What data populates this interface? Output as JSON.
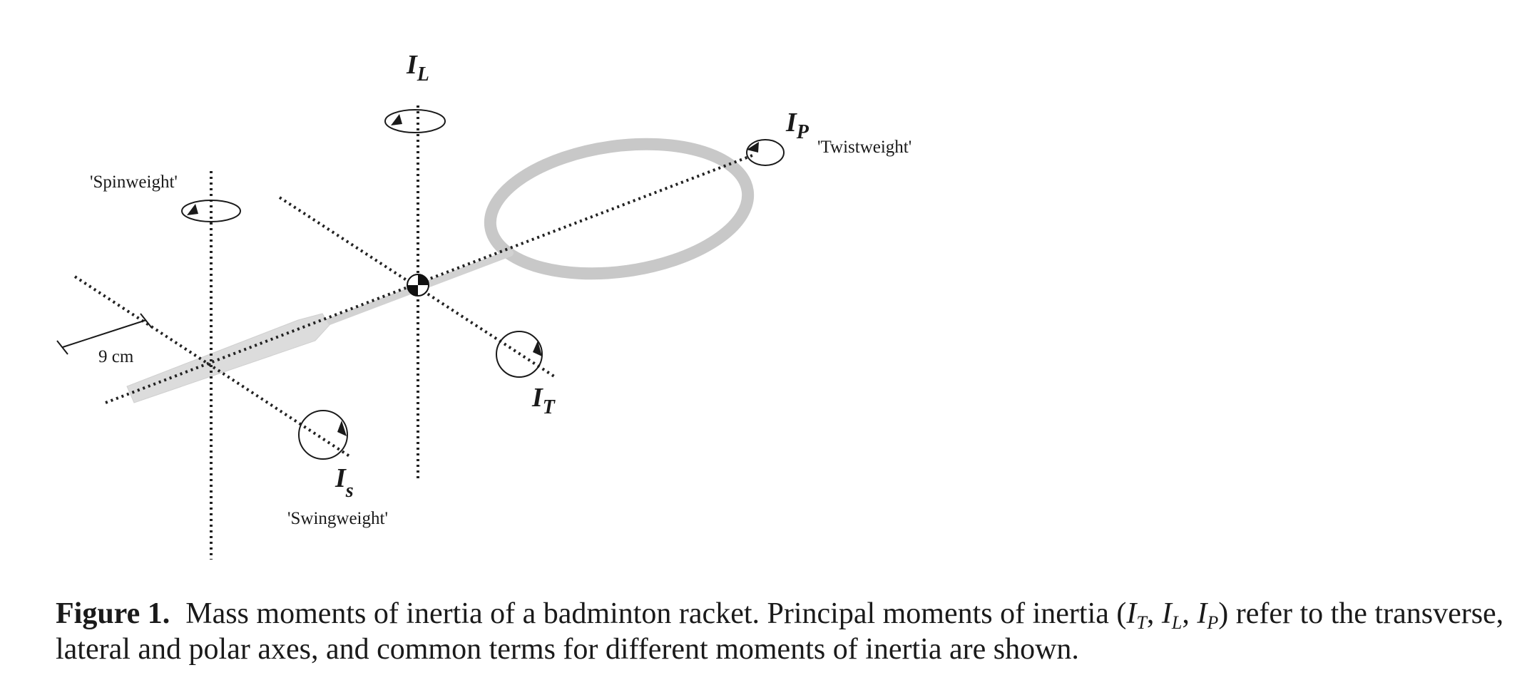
{
  "figure": {
    "axes": {
      "IL": {
        "main": "I",
        "sub": "L"
      },
      "IP": {
        "main": "I",
        "sub": "P"
      },
      "IT": {
        "main": "I",
        "sub": "T"
      },
      "Is": {
        "main": "I",
        "sub": "s"
      }
    },
    "terms": {
      "spinweight": "'Spinweight'",
      "twistweight": "'Twistweight'",
      "swingweight": "'Swingweight'"
    },
    "dimension": "9 cm"
  },
  "caption": {
    "label": "Figure 1.",
    "text_before": "Mass moments of inertia of a badminton racket. Principal moments of inertia (",
    "math": [
      {
        "main": "I",
        "sub": "T"
      },
      {
        "main": "I",
        "sub": "L"
      },
      {
        "main": "I",
        "sub": "P"
      }
    ],
    "text_after": ") refer to the transverse, lateral and polar axes, and common terms for different moments of inertia are shown."
  }
}
